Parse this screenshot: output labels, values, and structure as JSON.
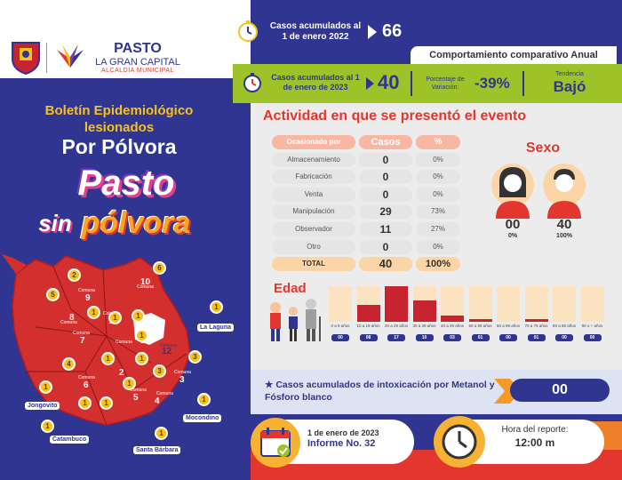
{
  "header": {
    "logo_title": "PASTO",
    "logo_subtitle": "LA GRAN CAPITAL",
    "logo_caption": "ALCALDÍA MUNICIPAL"
  },
  "bulletin": {
    "title": "Boletín Epidemiológico lesionados",
    "main": "Por Pólvora",
    "brand_pasto": "Pasto",
    "brand_sin": "sin",
    "brand_polvora": "pólvora"
  },
  "map": {
    "communes": [
      {
        "num": "9",
        "label": "Comuna"
      },
      {
        "num": "10",
        "label": "Comuna"
      },
      {
        "num": "8",
        "label": "Comuna"
      },
      {
        "num": "1",
        "label": "Comuna"
      },
      {
        "num": "11",
        "label": "Comuna"
      },
      {
        "num": "12",
        "label": "Comuna"
      },
      {
        "num": "7",
        "label": "Comuna"
      },
      {
        "num": "2",
        "label": "Comuna"
      },
      {
        "num": "3",
        "label": "Comuna"
      },
      {
        "num": "6",
        "label": "Comuna"
      },
      {
        "num": "5",
        "label": "Comuna"
      },
      {
        "num": "4",
        "label": "Comuna"
      }
    ],
    "pins": [
      "2",
      "6",
      "5",
      "1",
      "1",
      "1",
      "1",
      "1",
      "3",
      "4",
      "1",
      "3",
      "1",
      "1",
      "1",
      "1",
      "1",
      "1",
      "1",
      "1"
    ],
    "places": [
      "La Laguna",
      "Jongovito",
      "Catambuco",
      "Mocondino",
      "Santa Bárbara"
    ]
  },
  "cumulative_2022": {
    "label": "Casos acumulados al 1 de enero 2022",
    "value": "66"
  },
  "comparative_tab": "Comportamiento comparativo Anual",
  "cumulative_2023": {
    "label": "Casos acumulados al 1 de enero de 2023",
    "value": "40",
    "pct_label": "Porcentaje de Variación:",
    "pct_value": "-39%",
    "trend_label": "Tendencia",
    "trend_value": "Bajó"
  },
  "activity": {
    "title": "Actividad en que se presentó el evento",
    "headers": [
      "Ocasionado por",
      "Casos",
      "%"
    ],
    "rows": [
      {
        "name": "Almacenamiento",
        "cases": "0",
        "pct": "0%"
      },
      {
        "name": "Fabricación",
        "cases": "0",
        "pct": "0%"
      },
      {
        "name": "Venta",
        "cases": "0",
        "pct": "0%"
      },
      {
        "name": "Manipulación",
        "cases": "29",
        "pct": "73%"
      },
      {
        "name": "Observador",
        "cases": "11",
        "pct": "27%"
      },
      {
        "name": "Otro",
        "cases": "0",
        "pct": "0%"
      }
    ],
    "total": {
      "name": "TOTAL",
      "cases": "40",
      "pct": "100%"
    }
  },
  "sex": {
    "title": "Sexo",
    "female": {
      "value": "00",
      "pct": "0%"
    },
    "male": {
      "value": "40",
      "pct": "100%"
    }
  },
  "age": {
    "title": "Edad",
    "groups": [
      {
        "label": "0 a 9 años",
        "value": "00",
        "fraction": 0.0
      },
      {
        "label": "10 a 19 años",
        "value": "08",
        "fraction": 0.47
      },
      {
        "label": "20 a 29 años",
        "value": "17",
        "fraction": 1.0
      },
      {
        "label": "30 a 39 años",
        "value": "10",
        "fraction": 0.59
      },
      {
        "label": "40 a 49 años",
        "value": "03",
        "fraction": 0.18
      },
      {
        "label": "50 a 59 años",
        "value": "01",
        "fraction": 0.06
      },
      {
        "label": "60 a 69 años",
        "value": "00",
        "fraction": 0.0
      },
      {
        "label": "70 a 79 años",
        "value": "01",
        "fraction": 0.06
      },
      {
        "label": "80 a 89 años",
        "value": "00",
        "fraction": 0.0
      },
      {
        "label": "90 o + años",
        "value": "00",
        "fraction": 0.0
      }
    ]
  },
  "metanol": {
    "label": "Casos acumulados de intoxicación por Metanol y Fósforo blanco",
    "value": "00"
  },
  "report": {
    "date": "1 de enero de 2023",
    "number": "Informe No. 32",
    "time_label": "Hora del reporte:",
    "time_value": "12:00 m"
  },
  "colors": {
    "navy": "#2f3590",
    "red": "#e2362f",
    "green": "#9dc329",
    "orange": "#f07f2a",
    "yellow": "#f5c21d"
  }
}
